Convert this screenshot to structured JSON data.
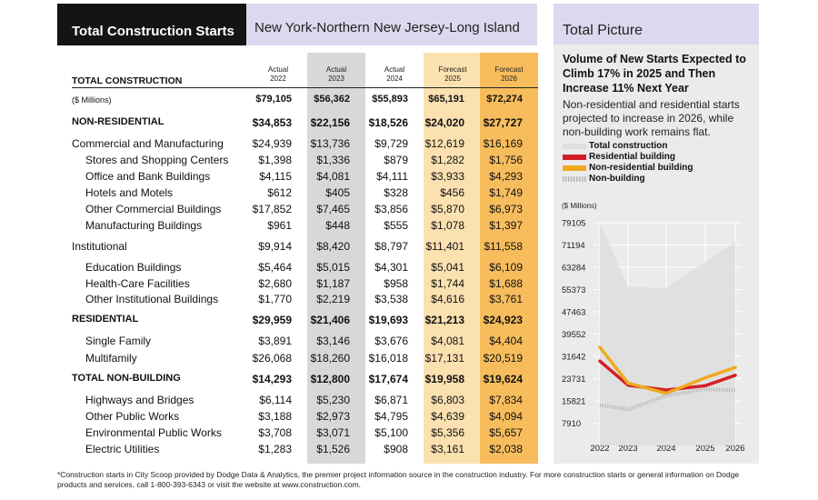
{
  "table": {
    "title_dark": "Total Construction Starts",
    "title_region": "New York-Northern New Jersey-Long Island",
    "section_title": "TOTAL CONSTRUCTION",
    "columns": [
      {
        "top": "Actual",
        "year": "2022"
      },
      {
        "top": "Actual",
        "year": "2023"
      },
      {
        "top": "Actual",
        "year": "2024"
      },
      {
        "top": "Forecast",
        "year": "2025"
      },
      {
        "top": "Forecast",
        "year": "2026"
      }
    ],
    "rows": [
      {
        "label": "($ Millions)",
        "style": "small",
        "values": [
          "$79,105",
          "$56,362",
          "$55,893",
          "$65,191",
          "$72,274"
        ]
      },
      {
        "label": "NON-RESIDENTIAL",
        "style": "bold",
        "values": [
          "$34,853",
          "$22,156",
          "$18,526",
          "$24,020",
          "$27,727"
        ]
      },
      {
        "label": "Commercial and Manufacturing",
        "style": "sec",
        "values": [
          "$24,939",
          "$13,736",
          "$9,729",
          "$12,619",
          "$16,169"
        ]
      },
      {
        "label": "Stores and Shopping Centers",
        "style": "sub",
        "values": [
          "$1,398",
          "$1,336",
          "$879",
          "$1,282",
          "$1,756"
        ]
      },
      {
        "label": "Office and Bank Buildings",
        "style": "sub",
        "values": [
          "$4,115",
          "$4,081",
          "$4,111",
          "$3,933",
          "$4,293"
        ]
      },
      {
        "label": "Hotels and Motels",
        "style": "sub",
        "values": [
          "$612",
          "$405",
          "$328",
          "$456",
          "$1,749"
        ]
      },
      {
        "label": "Other Commercial Buildings",
        "style": "sub",
        "values": [
          "$17,852",
          "$7,465",
          "$3,856",
          "$5,870",
          "$6,973"
        ]
      },
      {
        "label": "Manufacturing Buildings",
        "style": "sub",
        "values": [
          "$961",
          "$448",
          "$555",
          "$1,078",
          "$1,397"
        ]
      },
      {
        "label": "Institutional",
        "style": "sec",
        "values": [
          "$9,914",
          "$8,420",
          "$8,797",
          "$11,401",
          "$11,558"
        ]
      },
      {
        "label": "Education Buildings",
        "style": "sub",
        "values": [
          "$5,464",
          "$5,015",
          "$4,301",
          "$5,041",
          "$6,109"
        ]
      },
      {
        "label": "Health-Care Facilities",
        "style": "sub",
        "values": [
          "$2,680",
          "$1,187",
          "$958",
          "$1,744",
          "$1,688"
        ]
      },
      {
        "label": "Other Institutional Buildings",
        "style": "sub",
        "values": [
          "$1,770",
          "$2,219",
          "$3,538",
          "$4,616",
          "$3,761"
        ]
      },
      {
        "label": "RESIDENTIAL",
        "style": "bold",
        "values": [
          "$29,959",
          "$21,406",
          "$19,693",
          "$21,213",
          "$24,923"
        ]
      },
      {
        "label": "Single Family",
        "style": "sub",
        "values": [
          "$3,891",
          "$3,146",
          "$3,676",
          "$4,081",
          "$4,404"
        ]
      },
      {
        "label": "Multifamily",
        "style": "sub",
        "values": [
          "$26,068",
          "$18,260",
          "$16,018",
          "$17,131",
          "$20,519"
        ]
      },
      {
        "label": "TOTAL NON-BUILDING",
        "style": "bold",
        "values": [
          "$14,293",
          "$12,800",
          "$17,674",
          "$19,958",
          "$19,624"
        ]
      },
      {
        "label": "Highways and Bridges",
        "style": "sub",
        "values": [
          "$6,114",
          "$5,230",
          "$6,871",
          "$6,803",
          "$7,834"
        ]
      },
      {
        "label": "Other Public Works",
        "style": "sub",
        "values": [
          "$3,188",
          "$2,973",
          "$4,795",
          "$4,639",
          "$4,094"
        ]
      },
      {
        "label": "Environmental Public Works",
        "style": "sub",
        "values": [
          "$3,708",
          "$3,071",
          "$5,100",
          "$5,356",
          "$5,657"
        ]
      },
      {
        "label": "Electric Utilities",
        "style": "sub",
        "values": [
          "$1,283",
          "$1,526",
          "$908",
          "$3,161",
          "$2,038"
        ]
      }
    ]
  },
  "panel": {
    "title": "Total Picture",
    "subtitle": "Volume of New Starts Expected to Climb 17% in 2025 and Then Increase 11% Next Year",
    "description": "Non-residential and residential starts projected to increase in 2026, while non-building work remains flat."
  },
  "footnote": "*Construction starts in City Scoop provided by Dodge Data & Analytics, the premier project information source in the construction industry. For more construction starts or general information on Dodge products and services, call 1-800-393-6343 or visit the website at www.construction.com.",
  "chart_data": {
    "type": "line",
    "ylabel": "($ Millions)",
    "x": [
      "2022",
      "2023",
      "2024",
      "2025",
      "2026"
    ],
    "yticks": [
      "79105",
      "71194",
      "63284",
      "55373",
      "47463",
      "39552",
      "31642",
      "23731",
      "15821",
      "7910"
    ],
    "ylim": [
      0,
      79105
    ],
    "grid": true,
    "legend_position": "top-left",
    "series": [
      {
        "name": "Total construction",
        "style": "area",
        "color": "#dedede",
        "values": [
          79105,
          56362,
          55893,
          65191,
          72274
        ]
      },
      {
        "name": "Residential building",
        "style": "line",
        "color": "#d32028",
        "values": [
          29959,
          21406,
          19693,
          21213,
          24923
        ]
      },
      {
        "name": "Non-residential building",
        "style": "line",
        "color": "#f0a91f",
        "values": [
          34853,
          22156,
          18526,
          24020,
          27727
        ]
      },
      {
        "name": "Non-building",
        "style": "dotted",
        "color": "#b5b5b5",
        "values": [
          14293,
          12800,
          17674,
          19958,
          19624
        ]
      }
    ]
  }
}
